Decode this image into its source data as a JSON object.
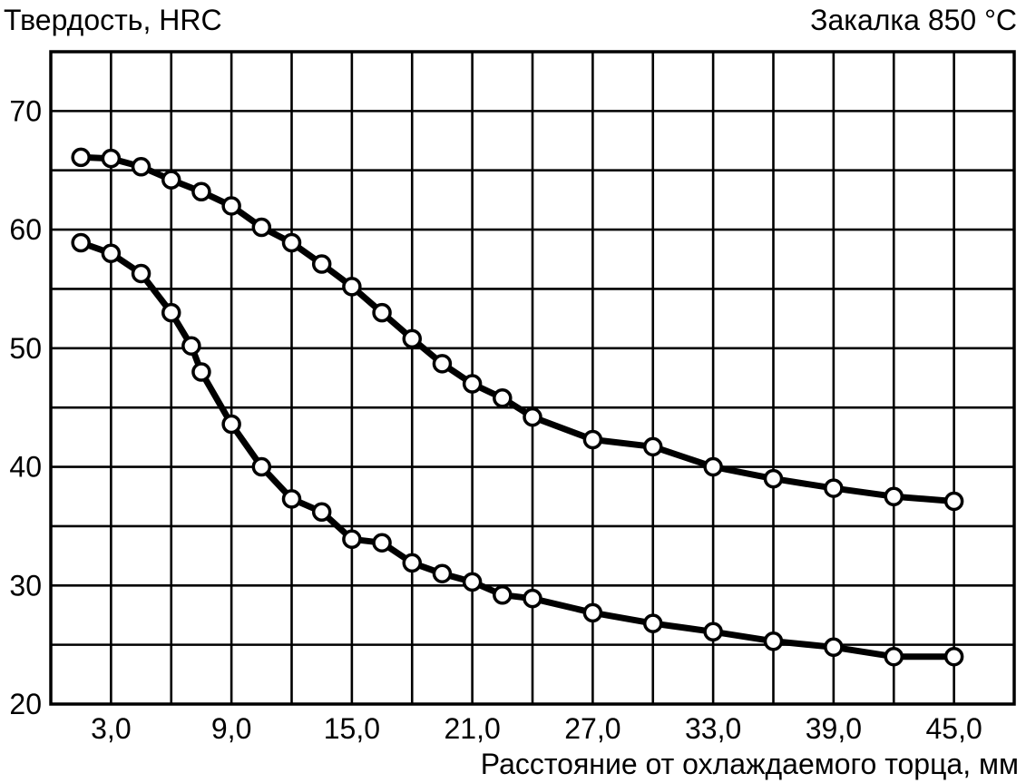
{
  "chart_data": {
    "type": "line",
    "title": "Закалка 850 °C",
    "ylabel": "Твердость, HRC",
    "xlabel": "Расстояние от охлаждаемого торца, мм",
    "xlim": [
      0,
      48
    ],
    "ylim": [
      20,
      75
    ],
    "x_ticks": [
      "3,0",
      "9,0",
      "15,0",
      "21,0",
      "27,0",
      "33,0",
      "39,0",
      "45,0"
    ],
    "x_tick_values": [
      3,
      9,
      15,
      21,
      27,
      33,
      39,
      45
    ],
    "y_ticks": [
      "20",
      "30",
      "40",
      "50",
      "60",
      "70"
    ],
    "y_tick_values": [
      20,
      30,
      40,
      50,
      60,
      70
    ],
    "grid": true,
    "series": [
      {
        "x": [
          1.5,
          3.0,
          4.5,
          6.0,
          7.5,
          9.0,
          10.5,
          12.0,
          13.5,
          15.0,
          16.5,
          18.0,
          19.5,
          21.0,
          22.5,
          24.0,
          27.0,
          30.0,
          33.0,
          36.0,
          39.0,
          42.0,
          45.0
        ],
        "y": [
          66.1,
          66.0,
          65.3,
          64.2,
          63.2,
          62.0,
          60.2,
          58.9,
          57.1,
          55.2,
          53.0,
          50.8,
          48.7,
          47.0,
          45.8,
          44.2,
          42.3,
          41.7,
          40.0,
          39.0,
          38.2,
          37.5,
          37.1
        ]
      },
      {
        "x": [
          1.5,
          3.0,
          4.5,
          6.0,
          7.0,
          7.5,
          9.0,
          10.5,
          12.0,
          13.5,
          15.0,
          16.5,
          18.0,
          19.5,
          21.0,
          22.5,
          24.0,
          27.0,
          30.0,
          33.0,
          36.0,
          39.0,
          42.0,
          45.0
        ],
        "y": [
          58.9,
          58.0,
          56.3,
          53.0,
          50.2,
          48.0,
          43.6,
          40.0,
          37.3,
          36.2,
          33.9,
          33.6,
          31.9,
          31.0,
          30.3,
          29.2,
          28.9,
          27.7,
          26.8,
          26.1,
          25.3,
          24.8,
          24.0,
          24.0
        ]
      }
    ]
  }
}
